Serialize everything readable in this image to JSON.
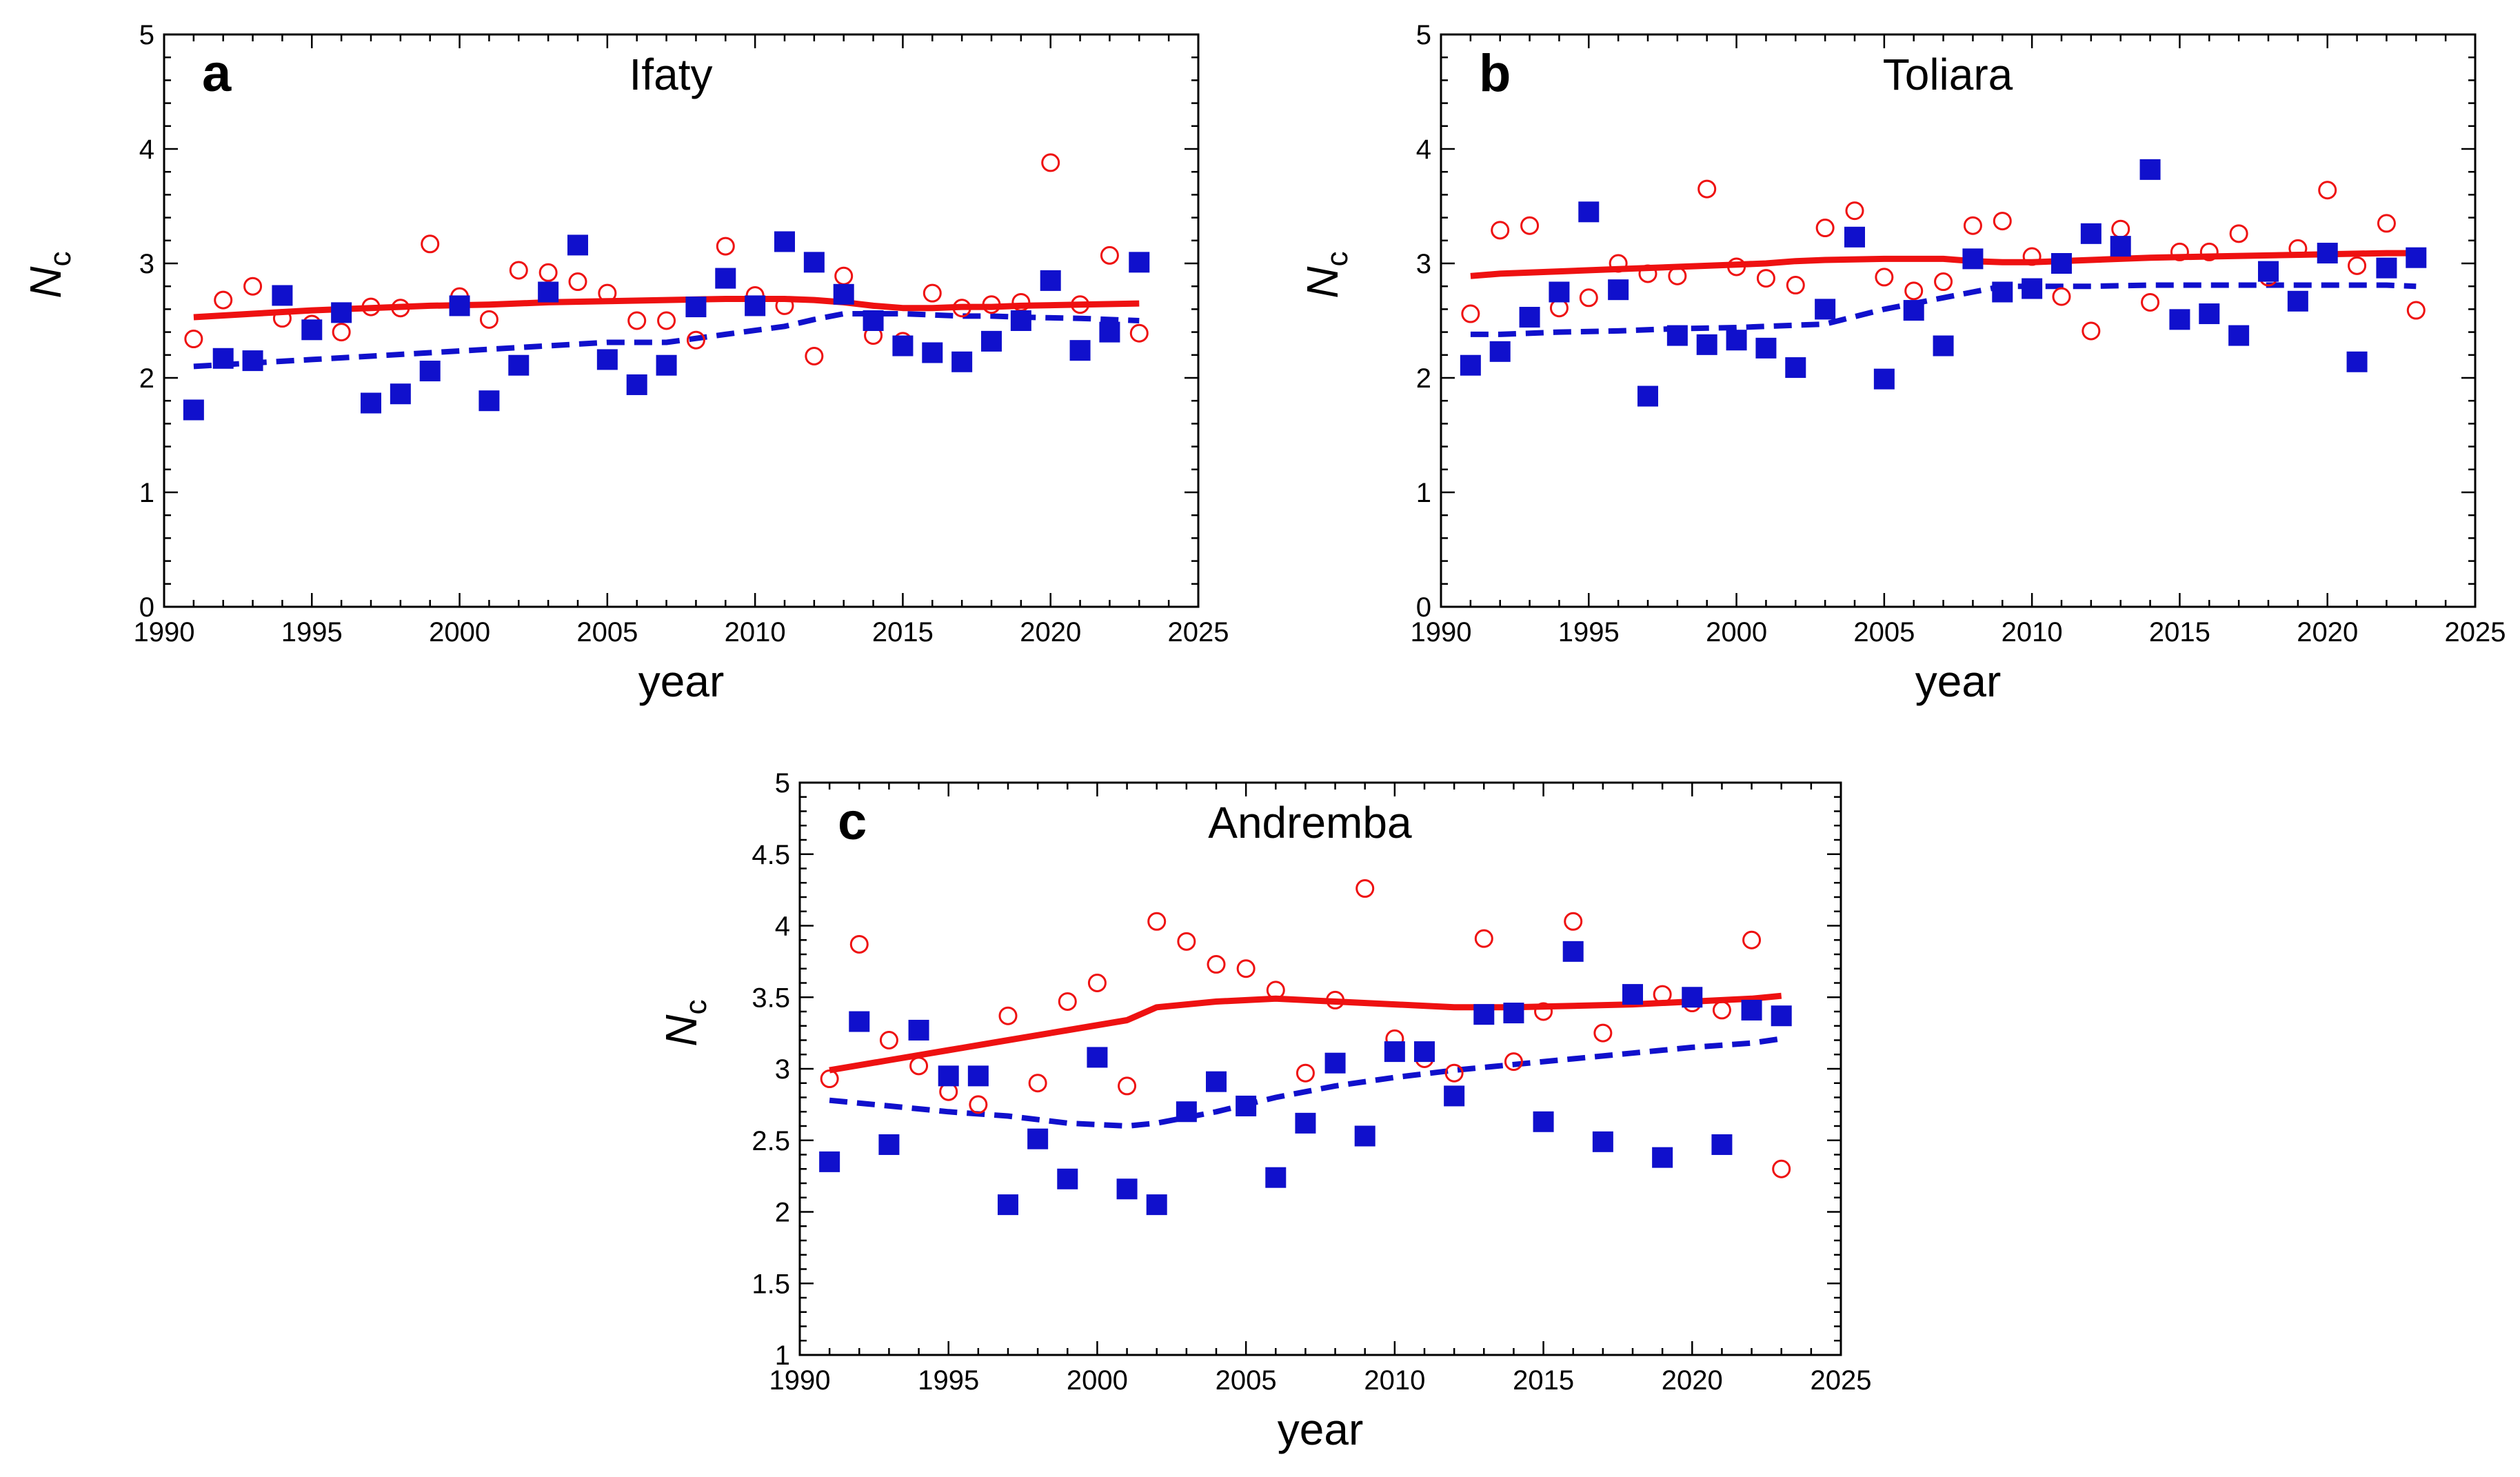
{
  "colors": {
    "open_circle": "#ee1111",
    "filled_square": "#1010cc",
    "solid_line": "#ee1111",
    "dashed_line": "#1010cc"
  },
  "chart_data": [
    {
      "type": "scatter",
      "panel_letter": "a",
      "title": "Ifaty",
      "xlabel": "year",
      "ylabel_main": "N",
      "ylabel_sub": "c",
      "xlim": [
        1990,
        2025
      ],
      "ylim": [
        0,
        5
      ],
      "xticks": [
        "1990",
        "1995",
        "2000",
        "2005",
        "2010",
        "2015",
        "2020",
        "2025"
      ],
      "yticks": [
        "0",
        "1",
        "2",
        "3",
        "4",
        "5"
      ],
      "x": [
        1991,
        1992,
        1993,
        1994,
        1995,
        1996,
        1997,
        1998,
        1999,
        2000,
        2001,
        2002,
        2003,
        2004,
        2005,
        2006,
        2007,
        2008,
        2009,
        2010,
        2011,
        2012,
        2013,
        2014,
        2015,
        2016,
        2017,
        2018,
        2019,
        2020,
        2021,
        2022,
        2023
      ],
      "series": [
        {
          "marker": "open-circle",
          "values": [
            2.34,
            2.68,
            2.8,
            2.52,
            2.47,
            2.4,
            2.62,
            2.61,
            3.17,
            2.71,
            2.51,
            2.94,
            2.92,
            2.84,
            2.74,
            2.5,
            2.5,
            2.33,
            3.15,
            2.72,
            2.63,
            2.19,
            2.89,
            2.37,
            2.32,
            2.74,
            2.61,
            2.64,
            2.66,
            3.88,
            2.64,
            3.07,
            2.39
          ]
        },
        {
          "marker": "filled-square",
          "values": [
            1.72,
            2.17,
            2.15,
            2.72,
            2.42,
            2.57,
            1.78,
            1.86,
            2.06,
            2.63,
            1.8,
            2.11,
            2.75,
            3.16,
            2.16,
            1.94,
            2.11,
            2.62,
            2.87,
            2.63,
            3.19,
            3.01,
            2.73,
            2.5,
            2.28,
            2.22,
            2.14,
            2.32,
            2.5,
            2.85,
            2.24,
            2.4,
            3.01
          ]
        },
        {
          "style": "solid",
          "values": [
            2.53,
            2.56,
            2.59,
            2.61,
            2.63,
            2.64,
            2.66,
            2.67,
            2.68,
            2.69,
            2.69,
            2.68,
            2.66,
            2.63,
            2.61,
            2.61,
            2.62,
            2.62,
            2.63,
            2.64,
            2.65
          ]
        },
        {
          "style": "dashed",
          "values": [
            2.1,
            2.13,
            2.16,
            2.19,
            2.22,
            2.25,
            2.28,
            2.31,
            2.31,
            2.38,
            2.45,
            2.51,
            2.56,
            2.56,
            2.56,
            2.55,
            2.54,
            2.54,
            2.53,
            2.52,
            2.5
          ]
        }
      ],
      "line_x": [
        1991,
        1993,
        1995,
        1997,
        1999,
        2001,
        2003,
        2005,
        2007,
        2009,
        2011,
        2012,
        2013,
        2014,
        2015,
        2016,
        2017,
        2018,
        2019,
        2021,
        2023
      ]
    },
    {
      "type": "scatter",
      "panel_letter": "b",
      "title": "Toliara",
      "xlabel": "year",
      "ylabel_main": "N",
      "ylabel_sub": "c",
      "xlim": [
        1990,
        2025
      ],
      "ylim": [
        0,
        5
      ],
      "xticks": [
        "1990",
        "1995",
        "2000",
        "2005",
        "2010",
        "2015",
        "2020",
        "2025"
      ],
      "yticks": [
        "0",
        "1",
        "2",
        "3",
        "4",
        "5"
      ],
      "x": [
        1991,
        1992,
        1993,
        1994,
        1995,
        1996,
        1997,
        1998,
        1999,
        2000,
        2001,
        2002,
        2003,
        2004,
        2005,
        2006,
        2007,
        2008,
        2009,
        2010,
        2011,
        2012,
        2013,
        2014,
        2015,
        2016,
        2017,
        2018,
        2019,
        2020,
        2021,
        2022,
        2023
      ],
      "series": [
        {
          "marker": "open-circle",
          "values": [
            2.56,
            3.29,
            3.33,
            2.61,
            2.7,
            3.0,
            2.91,
            2.89,
            3.65,
            2.97,
            2.87,
            2.81,
            3.31,
            3.46,
            2.88,
            2.76,
            2.84,
            3.33,
            3.37,
            3.06,
            2.71,
            2.41,
            3.3,
            2.66,
            3.1,
            3.1,
            3.26,
            2.88,
            3.13,
            3.64,
            2.98,
            3.35,
            2.59
          ]
        },
        {
          "marker": "filled-square",
          "values": [
            2.11,
            2.23,
            2.53,
            2.75,
            3.45,
            2.77,
            1.84,
            2.37,
            2.29,
            2.33,
            2.26,
            2.09,
            2.6,
            3.23,
            1.99,
            2.59,
            2.28,
            3.04,
            2.75,
            2.78,
            3.0,
            3.26,
            3.15,
            3.82,
            2.51,
            2.56,
            2.37,
            2.93,
            2.67,
            3.09,
            2.14,
            2.96,
            3.05
          ]
        },
        {
          "style": "solid",
          "values": [
            2.89,
            2.91,
            2.93,
            2.95,
            2.97,
            2.99,
            3.0,
            3.02,
            3.03,
            3.04,
            3.04,
            3.02,
            3.01,
            3.01,
            3.03,
            3.05,
            3.06,
            3.07,
            3.08,
            3.09,
            3.09
          ]
        },
        {
          "style": "dashed",
          "values": [
            2.38,
            2.38,
            2.4,
            2.41,
            2.43,
            2.44,
            2.45,
            2.46,
            2.47,
            2.6,
            2.7,
            2.75,
            2.8,
            2.8,
            2.8,
            2.81,
            2.81,
            2.81,
            2.81,
            2.81,
            2.8
          ]
        }
      ],
      "line_x": [
        1991,
        1992,
        1994,
        1996,
        1998,
        2000,
        2001,
        2002,
        2003,
        2005,
        2007,
        2008,
        2009,
        2010,
        2012,
        2014,
        2016,
        2018,
        2020,
        2022,
        2023
      ]
    },
    {
      "type": "scatter",
      "panel_letter": "c",
      "title": "Andremba",
      "xlabel": "year",
      "ylabel_main": "N",
      "ylabel_sub": "c",
      "xlim": [
        1990,
        2025
      ],
      "ylim": [
        1,
        5
      ],
      "xticks": [
        "1990",
        "1995",
        "2000",
        "2005",
        "2010",
        "2015",
        "2020",
        "2025"
      ],
      "yticks": [
        "1",
        "1.5",
        "2",
        "2.5",
        "3",
        "3.5",
        "4",
        "4.5",
        "5"
      ],
      "x": [
        1991,
        1992,
        1993,
        1994,
        1995,
        1996,
        1997,
        1998,
        1999,
        2000,
        2001,
        2002,
        2003,
        2004,
        2005,
        2006,
        2007,
        2008,
        2009,
        2010,
        2011,
        2012,
        2013,
        2014,
        2015,
        2016,
        2017,
        2018,
        2019,
        2020,
        2021,
        2022,
        2023
      ],
      "series": [
        {
          "marker": "open-circle",
          "values": [
            2.93,
            3.87,
            3.2,
            3.02,
            2.84,
            2.75,
            3.37,
            2.9,
            3.47,
            3.6,
            2.88,
            4.03,
            3.89,
            3.73,
            3.7,
            3.55,
            2.97,
            3.48,
            4.26,
            3.21,
            3.07,
            2.97,
            3.91,
            3.05,
            3.4,
            4.03,
            3.25,
            3.5,
            3.52,
            3.46,
            3.41,
            3.9,
            2.3
          ]
        },
        {
          "marker": "filled-square",
          "values": [
            2.35,
            3.33,
            2.47,
            3.27,
            2.95,
            2.95,
            2.05,
            2.51,
            2.23,
            3.08,
            2.16,
            2.05,
            2.7,
            2.91,
            2.74,
            2.24,
            2.62,
            3.04,
            2.53,
            3.12,
            3.12,
            2.81,
            3.38,
            3.39,
            2.63,
            3.82,
            2.49,
            3.52,
            2.38,
            3.5,
            2.47,
            3.41,
            3.37
          ]
        },
        {
          "style": "solid",
          "values": [
            2.99,
            3.06,
            3.13,
            3.2,
            3.27,
            3.34,
            3.43,
            3.47,
            3.49,
            3.47,
            3.45,
            3.43,
            3.43,
            3.44,
            3.45,
            3.47,
            3.49,
            3.51
          ]
        },
        {
          "style": "dashed",
          "values": [
            2.78,
            2.74,
            2.7,
            2.67,
            2.62,
            2.6,
            2.62,
            2.7,
            2.8,
            2.88,
            2.94,
            2.99,
            3.03,
            3.07,
            3.11,
            3.15,
            3.18,
            3.21
          ]
        }
      ],
      "line_x": [
        1991,
        1993,
        1995,
        1997,
        1999,
        2001,
        2002,
        2004,
        2006,
        2008,
        2010,
        2012,
        2014,
        2016,
        2018,
        2020,
        2022,
        2023
      ]
    }
  ]
}
